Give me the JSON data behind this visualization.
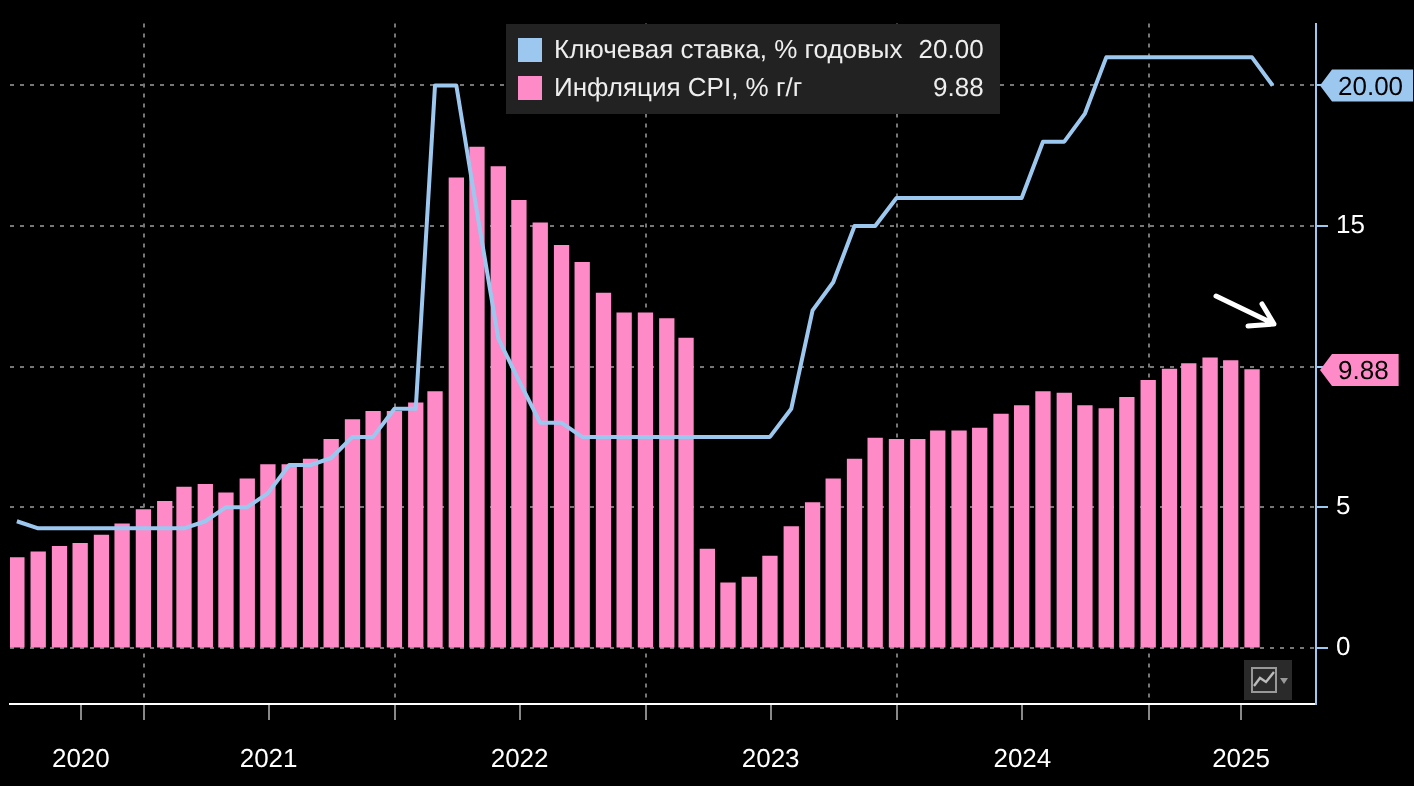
{
  "chart_data": {
    "type": "bar",
    "x": [
      "2020-06-30",
      "2020-07-31",
      "2020-08-31",
      "2020-09-30",
      "2020-10-31",
      "2020-11-30",
      "2020-12-31",
      "2021-01-31",
      "2021-02-28",
      "2021-03-31",
      "2021-04-30",
      "2021-05-31",
      "2021-06-30",
      "2021-07-31",
      "2021-08-31",
      "2021-09-30",
      "2021-10-31",
      "2021-11-30",
      "2021-12-31",
      "2022-01-31",
      "2022-02-28",
      "2022-03-31",
      "2022-04-30",
      "2022-05-31",
      "2022-06-30",
      "2022-07-31",
      "2022-08-31",
      "2022-09-30",
      "2022-10-31",
      "2022-11-30",
      "2022-12-31",
      "2023-01-31",
      "2023-02-28",
      "2023-03-31",
      "2023-04-30",
      "2023-05-31",
      "2023-06-30",
      "2023-07-31",
      "2023-08-31",
      "2023-09-30",
      "2023-10-31",
      "2023-11-30",
      "2023-12-31",
      "2024-01-31",
      "2024-02-29",
      "2024-03-31",
      "2024-04-30",
      "2024-05-31",
      "2024-06-30",
      "2024-07-31",
      "2024-08-31",
      "2024-09-30",
      "2024-10-31",
      "2024-11-30",
      "2024-12-31",
      "2025-01-31",
      "2025-02-28",
      "2025-03-31",
      "2025-04-30",
      "2025-05-31",
      "2025-06-30"
    ],
    "series": [
      {
        "name": "Ключевая ставка, % годовых",
        "type": "line",
        "color": "#9cc8f0",
        "values": [
          4.5,
          4.25,
          4.25,
          4.25,
          4.25,
          4.25,
          4.25,
          4.25,
          4.25,
          4.5,
          5,
          5,
          5.5,
          6.5,
          6.5,
          6.75,
          7.5,
          7.5,
          8.5,
          8.5,
          20,
          20,
          15.5,
          11,
          9.5,
          8,
          8,
          7.5,
          7.5,
          7.5,
          7.5,
          7.5,
          7.5,
          7.5,
          7.5,
          7.5,
          7.5,
          8.5,
          12,
          13,
          15,
          15,
          16,
          16,
          16,
          16,
          16,
          16,
          16,
          18,
          18,
          19,
          21,
          21,
          21,
          21,
          21,
          21,
          21,
          21,
          20
        ]
      },
      {
        "name": "Инфляция CPI, % г/г",
        "color": "#ff8ac8",
        "values": [
          3.2,
          3.4,
          3.6,
          3.7,
          4.0,
          4.4,
          4.9,
          5.2,
          5.7,
          5.8,
          5.5,
          6.0,
          6.5,
          6.5,
          6.7,
          7.4,
          8.1,
          8.4,
          8.4,
          8.7,
          9.1,
          16.7,
          17.8,
          17.1,
          15.9,
          15.1,
          14.3,
          13.7,
          12.6,
          11.9,
          11.9,
          11.7,
          11.0,
          3.5,
          2.3,
          2.5,
          3.25,
          4.3,
          5.15,
          6.0,
          6.7,
          7.45,
          7.4,
          7.4,
          7.7,
          7.7,
          7.8,
          8.3,
          8.6,
          9.1,
          9.05,
          8.6,
          8.5,
          8.9,
          9.5,
          9.9,
          10.1,
          10.3,
          10.2,
          9.88,
          null
        ]
      }
    ],
    "annotations": [
      "20.00",
      "9.88"
    ],
    "xlim": [
      "2020-06-20",
      "2025-09-01"
    ],
    "xticks": [
      {
        "value": "2020-10-01",
        "label": "2020"
      },
      {
        "value": "2021-01-01",
        "label": null
      },
      {
        "value": "2021-07-01",
        "label": "2021"
      },
      {
        "value": "2022-01-01",
        "label": null
      },
      {
        "value": "2022-07-01",
        "label": "2022"
      },
      {
        "value": "2023-01-01",
        "label": null
      },
      {
        "value": "2023-07-01",
        "label": "2023"
      },
      {
        "value": "2024-01-01",
        "label": null
      },
      {
        "value": "2024-07-01",
        "label": "2024"
      },
      {
        "value": "2025-01-01",
        "label": null
      },
      {
        "value": "2025-05-15",
        "label": "2025"
      }
    ],
    "ylim": [
      -2,
      22.2
    ],
    "yticks": [
      0,
      5,
      {
        "value": 10,
        "label": null
      },
      15,
      {
        "value": 20,
        "label": null
      }
    ],
    "grid": true,
    "legend": "top",
    "marker": "none"
  }
}
